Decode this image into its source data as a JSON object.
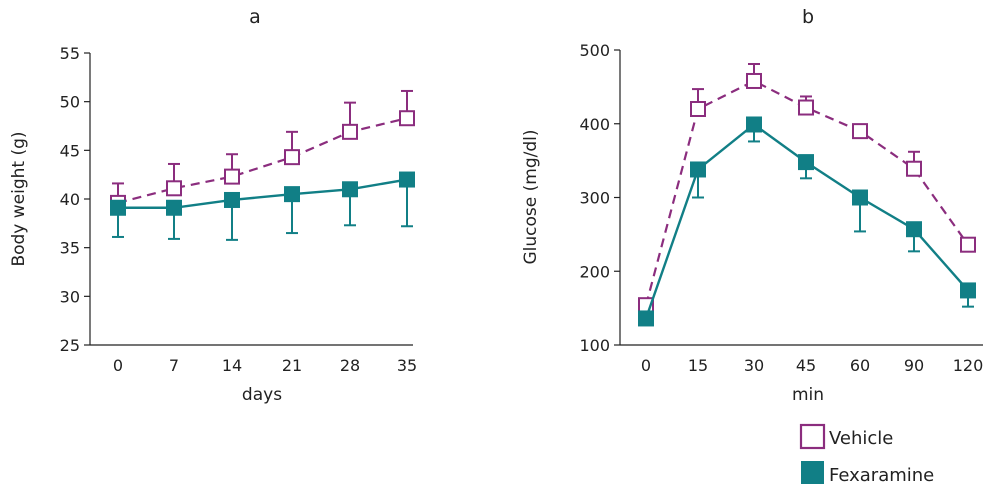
{
  "colors": {
    "vehicle": "#8b2d7e",
    "fexaramine": "#117f86",
    "axis": "#222222"
  },
  "legend": {
    "vehicle": {
      "label": "Vehicle",
      "marker": "open-square"
    },
    "fexaramine": {
      "label": "Fexaramine",
      "marker": "filled-square"
    }
  },
  "chart_data": [
    {
      "type": "line",
      "panel_letter": "a",
      "xlabel": "days",
      "ylabel": "Body weight (g)",
      "x_ticks": [
        "0",
        "7",
        "14",
        "21",
        "28",
        "35"
      ],
      "y_ticks": [
        "25",
        "30",
        "35",
        "40",
        "45",
        "50",
        "55"
      ],
      "ylim": [
        25,
        55
      ],
      "series": [
        {
          "name": "Vehicle",
          "style": "dashed",
          "marker": "open-square",
          "values": [
            39.6,
            41.1,
            42.3,
            44.3,
            46.9,
            48.3
          ],
          "error_up": [
            2.0,
            2.5,
            2.3,
            2.6,
            3.0,
            2.8
          ]
        },
        {
          "name": "Fexaramine",
          "style": "solid",
          "marker": "filled-square",
          "values": [
            39.1,
            39.1,
            39.9,
            40.5,
            41.0,
            42.0
          ],
          "error_down": [
            3.0,
            3.2,
            4.1,
            4.0,
            3.7,
            4.8
          ]
        }
      ]
    },
    {
      "type": "line",
      "panel_letter": "b",
      "xlabel": "min",
      "ylabel": "Glucose (mg/dl)",
      "x_ticks": [
        "0",
        "15",
        "30",
        "45",
        "60",
        "90",
        "120"
      ],
      "y_ticks": [
        "100",
        "200",
        "300",
        "400",
        "500"
      ],
      "ylim": [
        100,
        500
      ],
      "series": [
        {
          "name": "Vehicle",
          "style": "dashed",
          "marker": "open-square",
          "values": [
            154,
            420,
            458,
            422,
            390,
            339,
            236
          ],
          "error_up": [
            0,
            27,
            23,
            15,
            0,
            23,
            0
          ]
        },
        {
          "name": "Fexaramine",
          "style": "solid",
          "marker": "filled-square",
          "values": [
            136,
            338,
            399,
            348,
            300,
            257,
            174
          ],
          "error_down": [
            0,
            38,
            23,
            22,
            46,
            30,
            22
          ]
        }
      ]
    }
  ]
}
